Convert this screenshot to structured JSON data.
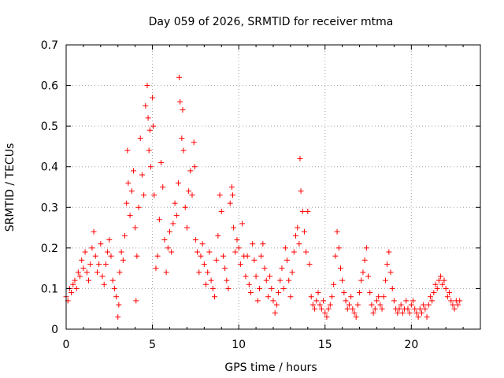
{
  "chart_data": {
    "type": "scatter",
    "title": "Day 059 of 2026, SRMTID for receiver mtma",
    "xlabel": "GPS time / hours",
    "ylabel": "SRMTID / TECUs",
    "xlim": [
      0,
      24
    ],
    "ylim": [
      0,
      0.7
    ],
    "xticks": [
      0,
      5,
      10,
      15,
      20
    ],
    "xtick_labels": [
      "0",
      "5",
      "10",
      "15",
      "20"
    ],
    "yticks": [
      0,
      0.1,
      0.2,
      0.3,
      0.4,
      0.5,
      0.6,
      0.7
    ],
    "ytick_labels": [
      "0",
      "0.1",
      "0.2",
      "0.3",
      "0.4",
      "0.5",
      "0.6",
      "0.7"
    ],
    "grid": true,
    "marker": "+",
    "color": "#ff0000",
    "series": [
      {
        "name": "SRMTID",
        "points": [
          [
            0.0,
            0.08
          ],
          [
            0.1,
            0.07
          ],
          [
            0.2,
            0.1
          ],
          [
            0.3,
            0.09
          ],
          [
            0.4,
            0.11
          ],
          [
            0.5,
            0.12
          ],
          [
            0.6,
            0.1
          ],
          [
            0.7,
            0.14
          ],
          [
            0.8,
            0.13
          ],
          [
            0.9,
            0.17
          ],
          [
            1.0,
            0.15
          ],
          [
            1.1,
            0.19
          ],
          [
            1.2,
            0.14
          ],
          [
            1.3,
            0.12
          ],
          [
            1.4,
            0.16
          ],
          [
            1.5,
            0.2
          ],
          [
            1.6,
            0.24
          ],
          [
            1.7,
            0.18
          ],
          [
            1.8,
            0.14
          ],
          [
            1.9,
            0.16
          ],
          [
            2.0,
            0.21
          ],
          [
            2.1,
            0.13
          ],
          [
            2.2,
            0.11
          ],
          [
            2.3,
            0.16
          ],
          [
            2.4,
            0.19
          ],
          [
            2.5,
            0.22
          ],
          [
            2.6,
            0.18
          ],
          [
            2.7,
            0.12
          ],
          [
            2.8,
            0.1
          ],
          [
            2.9,
            0.08
          ],
          [
            3.0,
            0.03
          ],
          [
            3.05,
            0.06
          ],
          [
            3.1,
            0.14
          ],
          [
            3.2,
            0.19
          ],
          [
            3.3,
            0.17
          ],
          [
            3.4,
            0.23
          ],
          [
            3.5,
            0.31
          ],
          [
            3.55,
            0.44
          ],
          [
            3.6,
            0.36
          ],
          [
            3.7,
            0.28
          ],
          [
            3.8,
            0.34
          ],
          [
            3.9,
            0.39
          ],
          [
            4.0,
            0.25
          ],
          [
            4.05,
            0.07
          ],
          [
            4.1,
            0.18
          ],
          [
            4.2,
            0.3
          ],
          [
            4.3,
            0.47
          ],
          [
            4.4,
            0.38
          ],
          [
            4.5,
            0.33
          ],
          [
            4.6,
            0.55
          ],
          [
            4.7,
            0.6
          ],
          [
            4.75,
            0.52
          ],
          [
            4.8,
            0.44
          ],
          [
            4.85,
            0.49
          ],
          [
            4.9,
            0.4
          ],
          [
            5.0,
            0.57
          ],
          [
            5.05,
            0.5
          ],
          [
            5.1,
            0.33
          ],
          [
            5.2,
            0.15
          ],
          [
            5.3,
            0.18
          ],
          [
            5.4,
            0.27
          ],
          [
            5.5,
            0.41
          ],
          [
            5.6,
            0.35
          ],
          [
            5.7,
            0.22
          ],
          [
            5.8,
            0.14
          ],
          [
            5.9,
            0.2
          ],
          [
            6.0,
            0.24
          ],
          [
            6.1,
            0.19
          ],
          [
            6.2,
            0.26
          ],
          [
            6.3,
            0.31
          ],
          [
            6.4,
            0.28
          ],
          [
            6.5,
            0.36
          ],
          [
            6.55,
            0.62
          ],
          [
            6.6,
            0.56
          ],
          [
            6.7,
            0.47
          ],
          [
            6.75,
            0.54
          ],
          [
            6.8,
            0.44
          ],
          [
            6.9,
            0.3
          ],
          [
            7.0,
            0.25
          ],
          [
            7.1,
            0.34
          ],
          [
            7.2,
            0.39
          ],
          [
            7.3,
            0.33
          ],
          [
            7.4,
            0.46
          ],
          [
            7.45,
            0.4
          ],
          [
            7.5,
            0.22
          ],
          [
            7.6,
            0.19
          ],
          [
            7.7,
            0.14
          ],
          [
            7.8,
            0.18
          ],
          [
            7.9,
            0.21
          ],
          [
            8.0,
            0.16
          ],
          [
            8.1,
            0.11
          ],
          [
            8.2,
            0.14
          ],
          [
            8.3,
            0.19
          ],
          [
            8.4,
            0.12
          ],
          [
            8.5,
            0.1
          ],
          [
            8.6,
            0.08
          ],
          [
            8.7,
            0.17
          ],
          [
            8.8,
            0.23
          ],
          [
            8.9,
            0.33
          ],
          [
            9.0,
            0.29
          ],
          [
            9.1,
            0.18
          ],
          [
            9.2,
            0.15
          ],
          [
            9.3,
            0.12
          ],
          [
            9.4,
            0.1
          ],
          [
            9.5,
            0.31
          ],
          [
            9.6,
            0.35
          ],
          [
            9.65,
            0.33
          ],
          [
            9.7,
            0.25
          ],
          [
            9.8,
            0.19
          ],
          [
            9.9,
            0.22
          ],
          [
            10.0,
            0.2
          ],
          [
            10.1,
            0.16
          ],
          [
            10.2,
            0.26
          ],
          [
            10.3,
            0.18
          ],
          [
            10.4,
            0.13
          ],
          [
            10.5,
            0.18
          ],
          [
            10.6,
            0.11
          ],
          [
            10.7,
            0.09
          ],
          [
            10.8,
            0.21
          ],
          [
            10.9,
            0.17
          ],
          [
            11.0,
            0.13
          ],
          [
            11.1,
            0.07
          ],
          [
            11.2,
            0.1
          ],
          [
            11.3,
            0.18
          ],
          [
            11.4,
            0.21
          ],
          [
            11.5,
            0.15
          ],
          [
            11.6,
            0.12
          ],
          [
            11.7,
            0.08
          ],
          [
            11.8,
            0.13
          ],
          [
            11.9,
            0.1
          ],
          [
            12.0,
            0.07
          ],
          [
            12.1,
            0.04
          ],
          [
            12.2,
            0.06
          ],
          [
            12.3,
            0.09
          ],
          [
            12.4,
            0.12
          ],
          [
            12.5,
            0.15
          ],
          [
            12.6,
            0.1
          ],
          [
            12.7,
            0.2
          ],
          [
            12.8,
            0.17
          ],
          [
            12.9,
            0.12
          ],
          [
            13.0,
            0.08
          ],
          [
            13.1,
            0.14
          ],
          [
            13.2,
            0.19
          ],
          [
            13.3,
            0.23
          ],
          [
            13.4,
            0.25
          ],
          [
            13.5,
            0.21
          ],
          [
            13.55,
            0.42
          ],
          [
            13.6,
            0.34
          ],
          [
            13.7,
            0.29
          ],
          [
            13.8,
            0.24
          ],
          [
            13.9,
            0.19
          ],
          [
            14.0,
            0.29
          ],
          [
            14.1,
            0.16
          ],
          [
            14.2,
            0.08
          ],
          [
            14.3,
            0.06
          ],
          [
            14.4,
            0.05
          ],
          [
            14.5,
            0.07
          ],
          [
            14.6,
            0.09
          ],
          [
            14.7,
            0.06
          ],
          [
            14.8,
            0.05
          ],
          [
            14.9,
            0.07
          ],
          [
            15.0,
            0.04
          ],
          [
            15.1,
            0.03
          ],
          [
            15.2,
            0.05
          ],
          [
            15.3,
            0.06
          ],
          [
            15.4,
            0.08
          ],
          [
            15.5,
            0.11
          ],
          [
            15.6,
            0.18
          ],
          [
            15.7,
            0.24
          ],
          [
            15.8,
            0.2
          ],
          [
            15.9,
            0.15
          ],
          [
            16.0,
            0.12
          ],
          [
            16.1,
            0.09
          ],
          [
            16.2,
            0.07
          ],
          [
            16.3,
            0.05
          ],
          [
            16.4,
            0.06
          ],
          [
            16.5,
            0.08
          ],
          [
            16.6,
            0.05
          ],
          [
            16.7,
            0.04
          ],
          [
            16.8,
            0.03
          ],
          [
            16.9,
            0.06
          ],
          [
            17.0,
            0.09
          ],
          [
            17.1,
            0.12
          ],
          [
            17.2,
            0.14
          ],
          [
            17.3,
            0.17
          ],
          [
            17.4,
            0.2
          ],
          [
            17.5,
            0.13
          ],
          [
            17.6,
            0.09
          ],
          [
            17.7,
            0.06
          ],
          [
            17.8,
            0.04
          ],
          [
            17.9,
            0.05
          ],
          [
            18.0,
            0.07
          ],
          [
            18.1,
            0.08
          ],
          [
            18.2,
            0.06
          ],
          [
            18.3,
            0.05
          ],
          [
            18.4,
            0.08
          ],
          [
            18.5,
            0.12
          ],
          [
            18.6,
            0.16
          ],
          [
            18.7,
            0.19
          ],
          [
            18.8,
            0.14
          ],
          [
            18.9,
            0.1
          ],
          [
            19.0,
            0.07
          ],
          [
            19.1,
            0.05
          ],
          [
            19.2,
            0.04
          ],
          [
            19.3,
            0.05
          ],
          [
            19.4,
            0.06
          ],
          [
            19.5,
            0.04
          ],
          [
            19.6,
            0.05
          ],
          [
            19.7,
            0.07
          ],
          [
            19.8,
            0.05
          ],
          [
            19.9,
            0.04
          ],
          [
            20.0,
            0.06
          ],
          [
            20.1,
            0.07
          ],
          [
            20.2,
            0.05
          ],
          [
            20.3,
            0.04
          ],
          [
            20.4,
            0.03
          ],
          [
            20.5,
            0.05
          ],
          [
            20.6,
            0.04
          ],
          [
            20.7,
            0.06
          ],
          [
            20.8,
            0.05
          ],
          [
            20.9,
            0.03
          ],
          [
            21.0,
            0.06
          ],
          [
            21.1,
            0.08
          ],
          [
            21.2,
            0.07
          ],
          [
            21.3,
            0.09
          ],
          [
            21.4,
            0.11
          ],
          [
            21.5,
            0.1
          ],
          [
            21.6,
            0.12
          ],
          [
            21.7,
            0.13
          ],
          [
            21.8,
            0.11
          ],
          [
            21.9,
            0.12
          ],
          [
            22.0,
            0.1
          ],
          [
            22.1,
            0.08
          ],
          [
            22.2,
            0.09
          ],
          [
            22.3,
            0.07
          ],
          [
            22.4,
            0.06
          ],
          [
            22.5,
            0.05
          ],
          [
            22.6,
            0.07
          ],
          [
            22.7,
            0.06
          ],
          [
            22.8,
            0.07
          ]
        ]
      }
    ]
  }
}
